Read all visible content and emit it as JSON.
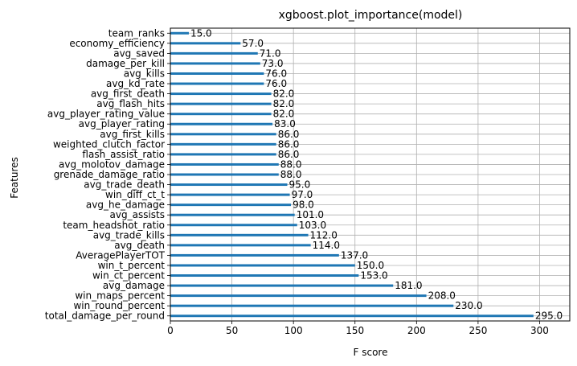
{
  "chart_data": {
    "type": "bar",
    "orientation": "horizontal",
    "title": "xgboost.plot_importance(model)",
    "xlabel": "F score",
    "ylabel": "Features",
    "xlim": [
      0,
      324.5
    ],
    "xticks": [
      0,
      50,
      100,
      150,
      200,
      250,
      300
    ],
    "grid": true,
    "bar_color": "#1f77b4",
    "categories": [
      "total_damage_per_round",
      "win_round_percent",
      "win_maps_percent",
      "avg_damage",
      "win_ct_percent",
      "win_t_percent",
      "AveragePlayerTOT",
      "avg_death",
      "avg_trade_kills",
      "team_headshot_ratio",
      "avg_assists",
      "avg_he_damage",
      "win_diff_ct_t",
      "avg_trade_death",
      "grenade_damage_ratio",
      "avg_molotov_damage",
      "flash_assist_ratio",
      "weighted_clutch_factor",
      "avg_first_kills",
      "avg_player_rating",
      "avg_player_rating_value",
      "avg_flash_hits",
      "avg_first_death",
      "avg_kd_rate",
      "avg_kills",
      "damage_per_kill",
      "avg_saved",
      "economy_efficiency",
      "team_ranks"
    ],
    "values": [
      295,
      230,
      208,
      181,
      153,
      150,
      137,
      114,
      112,
      103,
      101,
      98,
      97,
      95,
      88,
      88,
      86,
      86,
      86,
      83,
      82,
      82,
      82,
      76,
      76,
      73,
      71,
      57,
      15
    ],
    "value_labels": [
      "295.0",
      "230.0",
      "208.0",
      "181.0",
      "153.0",
      "150.0",
      "137.0",
      "114.0",
      "112.0",
      "103.0",
      "101.0",
      "98.0",
      "97.0",
      "95.0",
      "88.0",
      "88.0",
      "86.0",
      "86.0",
      "86.0",
      "83.0",
      "82.0",
      "82.0",
      "82.0",
      "76.0",
      "76.0",
      "73.0",
      "71.0",
      "57.0",
      "15.0"
    ]
  }
}
